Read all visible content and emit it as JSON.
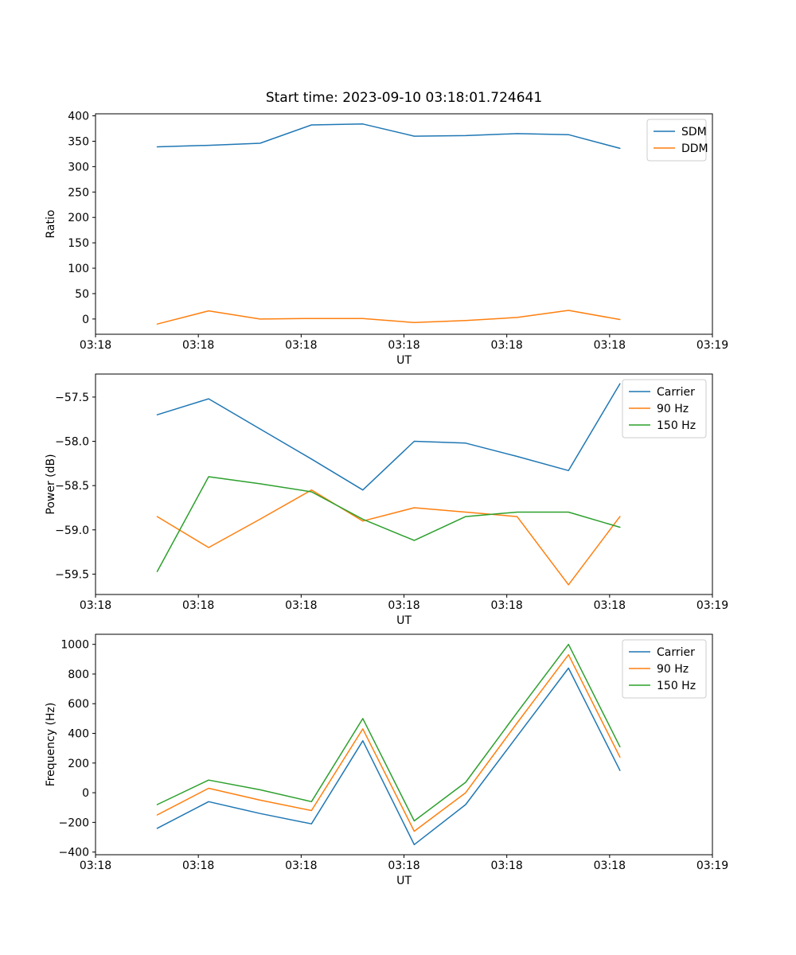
{
  "figure": {
    "title": "Start time: 2023-09-10 03:18:01.724641",
    "background": "#ffffff"
  },
  "colors": {
    "blue": "#1f77b4",
    "orange": "#ff7f0e",
    "green": "#2ca02c",
    "legend_border": "#cccccc",
    "axis": "#000000"
  },
  "chart_data": [
    {
      "type": "line",
      "title": "Start time: 2023-09-10 03:18:01.724641",
      "xlabel": "UT",
      "ylabel": "Ratio",
      "xlim": [
        0,
        60
      ],
      "ylim": [
        -30,
        404
      ],
      "grid": false,
      "legend_position": "upper right",
      "xticks": {
        "values": [
          0,
          10,
          20,
          30,
          40,
          50,
          60
        ],
        "labels": [
          "03:18",
          "03:18",
          "03:18",
          "03:18",
          "03:18",
          "03:18",
          "03:19"
        ]
      },
      "yticks": {
        "values": [
          0,
          50,
          100,
          150,
          200,
          250,
          300,
          350,
          400
        ],
        "labels": [
          "0",
          "50",
          "100",
          "150",
          "200",
          "250",
          "300",
          "350",
          "400"
        ]
      },
      "x_seconds_after_0318": [
        6,
        11,
        16,
        21,
        26,
        31,
        36,
        41,
        46,
        51
      ],
      "series": [
        {
          "name": "SDM",
          "color": "#1f77b4",
          "values": [
            339,
            342,
            346,
            382,
            384,
            360,
            361,
            365,
            363,
            336
          ]
        },
        {
          "name": "DDM",
          "color": "#ff7f0e",
          "values": [
            -10,
            16,
            0,
            1,
            1,
            -7,
            -3,
            3,
            17,
            -1
          ]
        }
      ]
    },
    {
      "type": "line",
      "title": "",
      "xlabel": "UT",
      "ylabel": "Power (dB)",
      "xlim": [
        0,
        60
      ],
      "ylim": [
        -59.73,
        -57.24
      ],
      "grid": false,
      "legend_position": "upper right",
      "xticks": {
        "values": [
          0,
          10,
          20,
          30,
          40,
          50,
          60
        ],
        "labels": [
          "03:18",
          "03:18",
          "03:18",
          "03:18",
          "03:18",
          "03:18",
          "03:19"
        ]
      },
      "yticks": {
        "values": [
          -57.5,
          -58.0,
          -58.5,
          -59.0,
          -59.5
        ],
        "labels": [
          "−57.5",
          "−58.0",
          "−58.5",
          "−59.0",
          "−59.5"
        ]
      },
      "x_seconds_after_0318": [
        6,
        11,
        16,
        21,
        26,
        31,
        36,
        41,
        46,
        51
      ],
      "series": [
        {
          "name": "Carrier",
          "color": "#1f77b4",
          "values": [
            -57.7,
            -57.52,
            -57.86,
            -58.2,
            -58.55,
            -58.0,
            -58.02,
            -58.17,
            -58.33,
            -57.35
          ]
        },
        {
          "name": "90 Hz",
          "color": "#ff7f0e",
          "values": [
            -58.85,
            -59.2,
            -58.88,
            -58.55,
            -58.9,
            -58.75,
            -58.8,
            -58.85,
            -59.62,
            -58.85
          ]
        },
        {
          "name": "150 Hz",
          "color": "#2ca02c",
          "values": [
            -59.47,
            -58.4,
            -58.48,
            -58.57,
            -58.88,
            -59.12,
            -58.85,
            -58.8,
            -58.8,
            -58.97
          ]
        }
      ]
    },
    {
      "type": "line",
      "title": "",
      "xlabel": "UT",
      "ylabel": "Frequency (Hz)",
      "xlim": [
        0,
        60
      ],
      "ylim": [
        -418,
        1068
      ],
      "grid": false,
      "legend_position": "upper right",
      "xticks": {
        "values": [
          0,
          10,
          20,
          30,
          40,
          50,
          60
        ],
        "labels": [
          "03:18",
          "03:18",
          "03:18",
          "03:18",
          "03:18",
          "03:18",
          "03:19"
        ]
      },
      "yticks": {
        "values": [
          -400,
          -200,
          0,
          200,
          400,
          600,
          800,
          1000
        ],
        "labels": [
          "−400",
          "−200",
          "0",
          "200",
          "400",
          "600",
          "800",
          "1000"
        ]
      },
      "x_seconds_after_0318": [
        6,
        11,
        16,
        21,
        26,
        31,
        36,
        41,
        46,
        51
      ],
      "series": [
        {
          "name": "Carrier",
          "color": "#1f77b4",
          "values": [
            -240,
            -60,
            -140,
            -210,
            350,
            -350,
            -80,
            380,
            840,
            150
          ]
        },
        {
          "name": "90 Hz",
          "color": "#ff7f0e",
          "values": [
            -150,
            30,
            -50,
            -120,
            430,
            -260,
            0,
            470,
            930,
            240
          ]
        },
        {
          "name": "150 Hz",
          "color": "#2ca02c",
          "values": [
            -80,
            85,
            20,
            -60,
            500,
            -190,
            70,
            540,
            1000,
            310
          ]
        }
      ]
    }
  ]
}
